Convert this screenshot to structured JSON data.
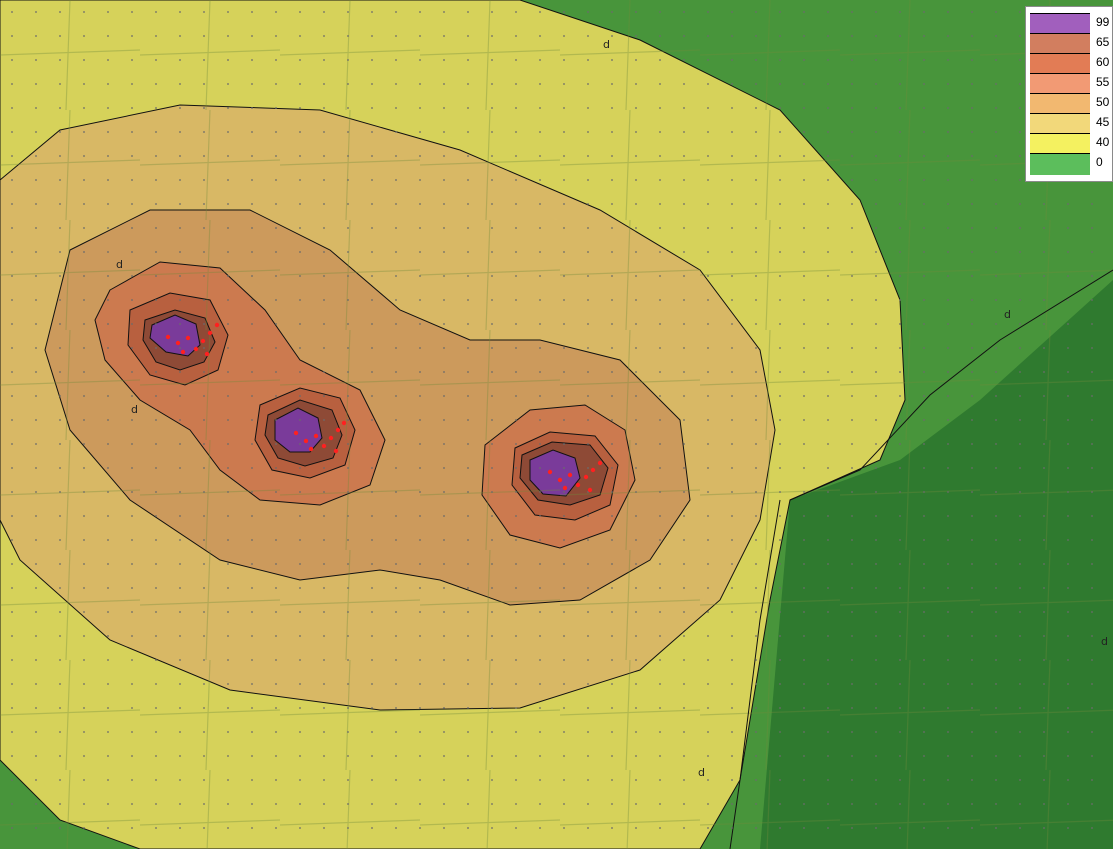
{
  "map": {
    "source_marker": "d"
  },
  "legend": {
    "items": [
      {
        "label": "99",
        "color": "#a15fbd"
      },
      {
        "label": "65",
        "color": "#d27e5f"
      },
      {
        "label": "60",
        "color": "#e27c55"
      },
      {
        "label": "55",
        "color": "#f29a74"
      },
      {
        "label": "50",
        "color": "#f2b870"
      },
      {
        "label": "45",
        "color": "#f2d87a"
      },
      {
        "label": "40",
        "color": "#f4f160"
      },
      {
        "label": "0",
        "color": "#5cbe5c"
      }
    ]
  },
  "colors": {
    "forest": "#2f7a2f",
    "field_green": "#4f9c3f",
    "band_40": "#d6d25a",
    "band_45": "#d8b865",
    "band_50": "#cc9a5c",
    "band_55": "#cc7a4f",
    "band_60": "#b8603f",
    "band_65": "#8e4a36",
    "band_99": "#7a3b9a",
    "turbine": "#ff2020"
  }
}
